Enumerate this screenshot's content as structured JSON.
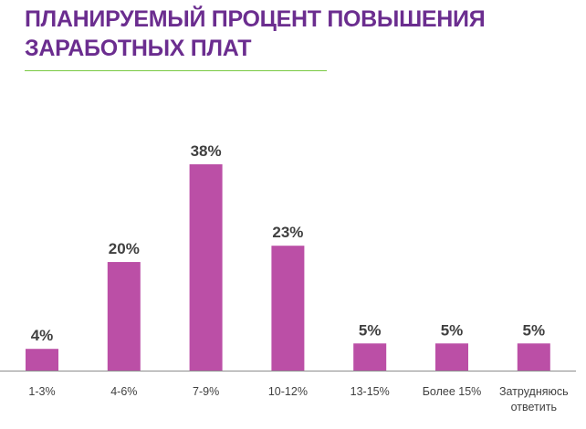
{
  "chart_data": {
    "type": "bar",
    "title_lines": [
      "ПЛАНИРУЕМЫЙ ПРОЦЕНТ ПОВЫШЕНИЯ",
      "ЗАРАБОТНЫХ ПЛАТ"
    ],
    "categories": [
      [
        "1-3%"
      ],
      [
        "4-6%"
      ],
      [
        "7-9%"
      ],
      [
        "10-12%"
      ],
      [
        "13-15%"
      ],
      [
        "Более 15%"
      ],
      [
        "Затрудняюсь",
        "ответить"
      ]
    ],
    "values": [
      4,
      20,
      38,
      23,
      5,
      5,
      5
    ],
    "value_labels": [
      "4%",
      "20%",
      "38%",
      "23%",
      "5%",
      "5%",
      "5%"
    ],
    "xlabel": "",
    "ylabel": "",
    "ylim": [
      0,
      40
    ],
    "grid": false,
    "bar_color": "#bb4fa6",
    "title_color": "#6b2d8f",
    "accent_line_color": "#7ac943"
  }
}
